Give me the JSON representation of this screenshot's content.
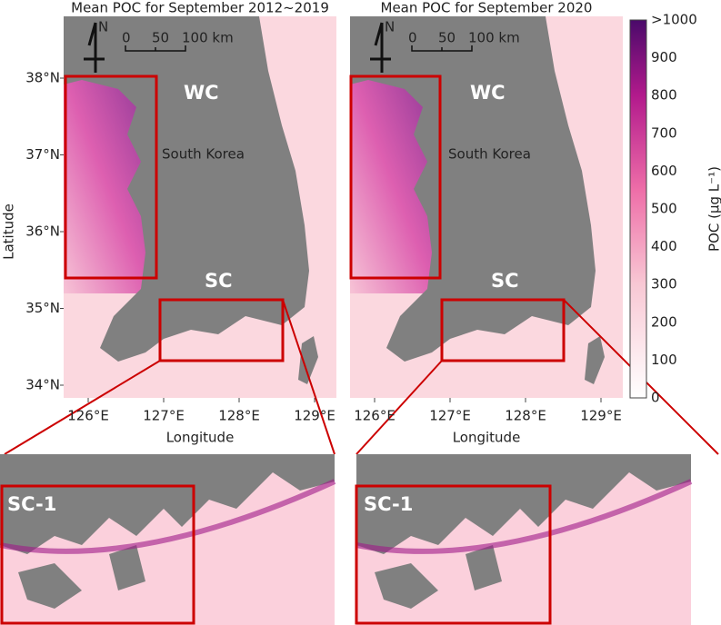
{
  "panels": [
    {
      "title": "Mean POC for September 2012~2019",
      "north": "N",
      "scale_ticks": [
        "0",
        "50",
        "100 km"
      ],
      "regions": [
        "WC",
        "South Korea",
        "SC"
      ],
      "x_ticks": [
        "126°E",
        "127°E",
        "128°E",
        "129°E"
      ],
      "x_label": "Longitude",
      "inset_label": "SC-1"
    },
    {
      "title": "Mean POC for September 2020",
      "north": "N",
      "scale_ticks": [
        "0",
        "50",
        "100 km"
      ],
      "regions": [
        "WC",
        "South Korea",
        "SC"
      ],
      "x_ticks": [
        "126°E",
        "127°E",
        "128°E",
        "129°E"
      ],
      "x_label": "Longitude",
      "inset_label": "SC-1"
    }
  ],
  "y_axis": {
    "label": "Latitude",
    "ticks": [
      "38°N",
      "37°N",
      "36°N",
      "35°N",
      "34°N"
    ]
  },
  "colorbar": {
    "label": "POC (μg L⁻¹)",
    "ticks": [
      ">1000",
      "900",
      "800",
      "700",
      "600",
      "500",
      "400",
      "300",
      "200",
      "100",
      "0"
    ]
  }
}
